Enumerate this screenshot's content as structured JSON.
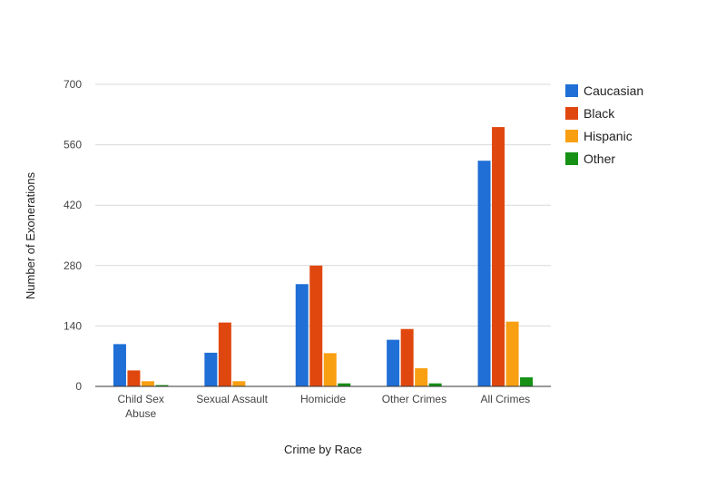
{
  "chart_data": {
    "type": "bar",
    "title": "",
    "xlabel": "Crime by Race",
    "ylabel": "Number of Exonerations",
    "ylim": [
      0,
      700
    ],
    "yticks": [
      0,
      140,
      280,
      420,
      560,
      700
    ],
    "grid": true,
    "legend_position": "right",
    "categories": [
      [
        "Child Sex",
        "Abuse"
      ],
      [
        "Sexual Assault"
      ],
      [
        "Homicide"
      ],
      [
        "Other Crimes"
      ],
      [
        "All Crimes"
      ]
    ],
    "series": [
      {
        "name": "Caucasian",
        "color": "#1f6fd6",
        "values": [
          98,
          78,
          237,
          108,
          523
        ]
      },
      {
        "name": "Black",
        "color": "#e0470f",
        "values": [
          37,
          148,
          280,
          133,
          601
        ]
      },
      {
        "name": "Hispanic",
        "color": "#f99f12",
        "values": [
          12,
          12,
          77,
          42,
          150
        ]
      },
      {
        "name": "Other",
        "color": "#169116",
        "values": [
          3,
          0,
          7,
          7,
          21
        ]
      }
    ]
  }
}
